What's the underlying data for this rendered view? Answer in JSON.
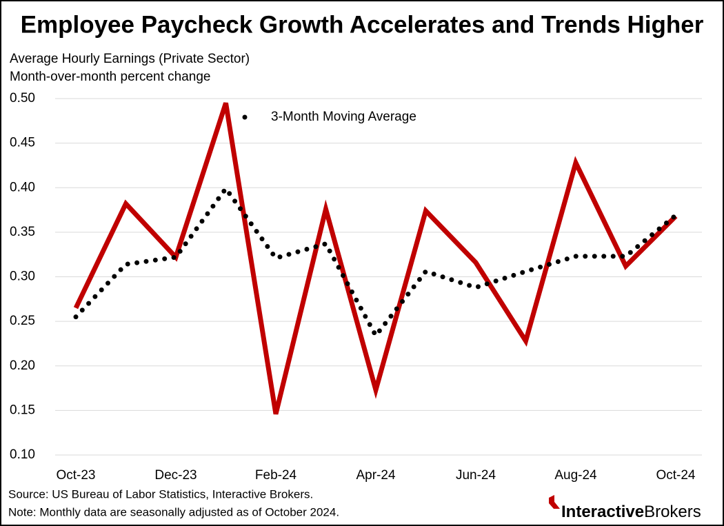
{
  "chart_data": {
    "type": "line",
    "title": "Employee Paycheck Growth Accelerates and Trends Higher",
    "subtitle": [
      "Average Hourly Earnings (Private Sector)",
      "Month-over-month percent change"
    ],
    "categories": [
      "Oct-23",
      null,
      "Dec-23",
      null,
      "Feb-24",
      null,
      "Apr-24",
      null,
      "Jun-24",
      null,
      "Aug-24",
      null,
      "Oct-24"
    ],
    "series": [
      {
        "color": "#c00000",
        "style": "solid",
        "values": [
          0.265,
          0.382,
          0.322,
          0.495,
          0.146,
          0.376,
          0.173,
          0.374,
          0.316,
          0.228,
          0.428,
          0.312,
          0.368
        ]
      },
      {
        "name": "3-Month Moving Average",
        "color": "#000000",
        "style": "dotted",
        "values": [
          0.255,
          0.314,
          0.322,
          0.399,
          0.321,
          0.337,
          0.234,
          0.306,
          0.288,
          0.306,
          0.323,
          0.323,
          0.369
        ]
      }
    ],
    "ylim": [
      0.1,
      0.5
    ],
    "yticks": [
      {
        "value": 0.1,
        "label": "0.10"
      },
      {
        "value": 0.15,
        "label": "0.15"
      },
      {
        "value": 0.2,
        "label": "0.20"
      },
      {
        "value": 0.25,
        "label": "0.25"
      },
      {
        "value": 0.3,
        "label": "0.30"
      },
      {
        "value": 0.35,
        "label": "0.35"
      },
      {
        "value": 0.4,
        "label": "0.40"
      },
      {
        "value": 0.45,
        "label": "0.45"
      },
      {
        "value": 0.5,
        "label": "0.50"
      }
    ],
    "grid": true,
    "legend": "upper center",
    "source": "Source: US Bureau of Labor Statistics, Interactive Brokers.",
    "note": "Note: Monthly data are seasonally adjusted as of October 2024.",
    "logo": [
      "Interactive",
      "Brokers"
    ]
  }
}
